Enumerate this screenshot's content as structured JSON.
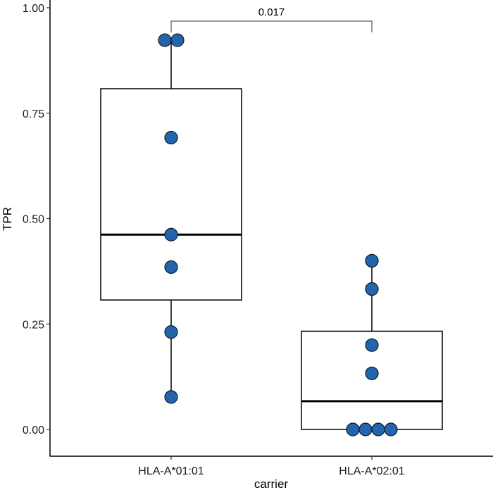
{
  "chart_data": {
    "type": "box",
    "title": "",
    "xlabel": "carrier",
    "ylabel": "TPR",
    "ylim": [
      -0.065,
      1.0
    ],
    "yticks": [
      0.0,
      0.25,
      0.5,
      0.75,
      1.0
    ],
    "ytick_labels": [
      "0.00",
      "0.25",
      "0.50",
      "0.75",
      "1.00"
    ],
    "categories": [
      "HLA-A*01:01",
      "HLA-A*02:01"
    ],
    "grid": false,
    "legend": null,
    "boxes": [
      {
        "name": "HLA-A*01:01",
        "whisker_low": 0.077,
        "q1": 0.307,
        "median": 0.462,
        "q3": 0.808,
        "whisker_high": 0.923
      },
      {
        "name": "HLA-A*02:01",
        "whisker_low": 0.0,
        "q1": 0.0,
        "median": 0.067,
        "q3": 0.233,
        "whisker_high": 0.4
      }
    ],
    "points": [
      {
        "name": "HLA-A*01:01",
        "values": [
          0.923,
          0.923,
          0.692,
          0.462,
          0.385,
          0.231,
          0.077
        ]
      },
      {
        "name": "HLA-A*02:01",
        "values": [
          0.4,
          0.333,
          0.2,
          0.133,
          0.0,
          0.0,
          0.0,
          0.0
        ]
      }
    ],
    "annotations": [
      {
        "type": "significance-bracket",
        "from": "HLA-A*01:01",
        "to": "HLA-A*02:01",
        "label": "0.017"
      }
    ],
    "point_color": "#2265AC"
  },
  "axes": {
    "x_title": "carrier",
    "y_title": "TPR",
    "pvalue": "0.017"
  }
}
